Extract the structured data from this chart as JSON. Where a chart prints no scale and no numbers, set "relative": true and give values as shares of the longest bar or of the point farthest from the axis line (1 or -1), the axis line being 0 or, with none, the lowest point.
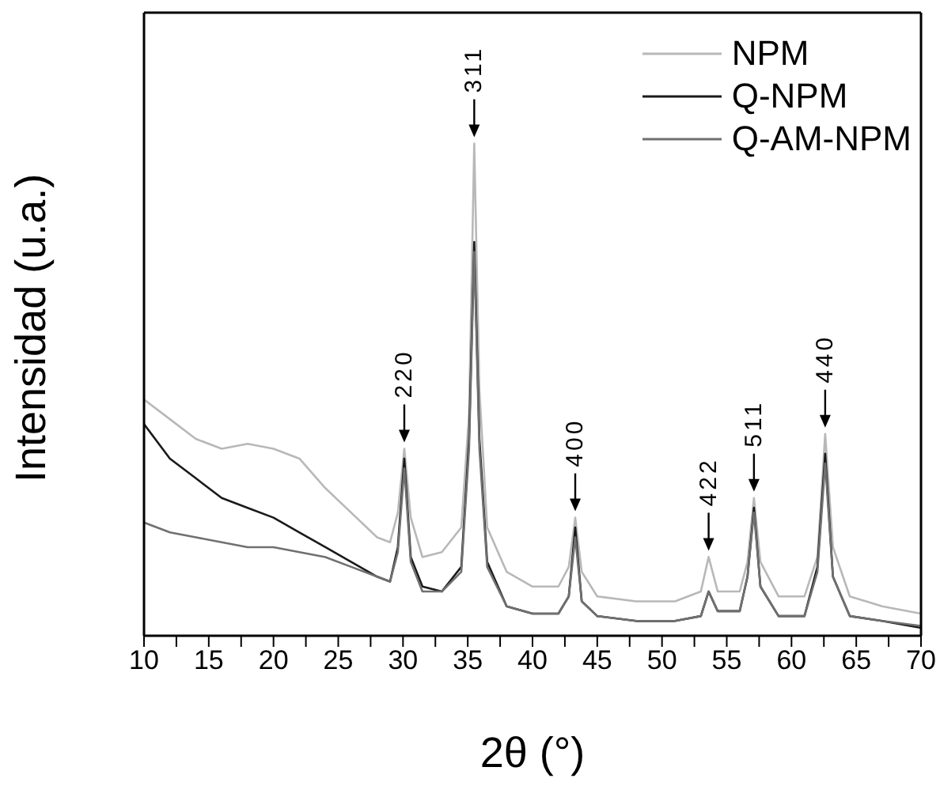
{
  "chart_data": {
    "type": "line",
    "relative": true,
    "xlabel": "2θ (°)",
    "ylabel": "Intensidad (u.a.)",
    "x": [
      10,
      12,
      14,
      16,
      18,
      20,
      22,
      24,
      26,
      28,
      29,
      29.6,
      30.1,
      30.6,
      31.5,
      33,
      34.5,
      35.1,
      35.5,
      35.9,
      36.5,
      38,
      40,
      42,
      42.8,
      43.3,
      43.8,
      45,
      48,
      51,
      53,
      53.6,
      54.3,
      56,
      56.6,
      57.1,
      57.6,
      59,
      61,
      62,
      62.6,
      63.2,
      64.5,
      67,
      70
    ],
    "series": [
      {
        "name": "NPM",
        "color": "#b8b8b8",
        "values": [
          0.48,
          0.44,
          0.4,
          0.38,
          0.39,
          0.38,
          0.36,
          0.3,
          0.25,
          0.2,
          0.19,
          0.25,
          0.38,
          0.24,
          0.16,
          0.17,
          0.22,
          0.45,
          1.0,
          0.5,
          0.22,
          0.13,
          0.1,
          0.1,
          0.14,
          0.24,
          0.13,
          0.08,
          0.07,
          0.07,
          0.09,
          0.16,
          0.09,
          0.09,
          0.15,
          0.28,
          0.15,
          0.08,
          0.08,
          0.16,
          0.41,
          0.18,
          0.08,
          0.06,
          0.045
        ]
      },
      {
        "name": "Q-NPM",
        "color": "#1a1a1a",
        "values": [
          0.43,
          0.36,
          0.32,
          0.28,
          0.26,
          0.24,
          0.21,
          0.18,
          0.15,
          0.12,
          0.11,
          0.18,
          0.36,
          0.16,
          0.1,
          0.09,
          0.14,
          0.4,
          0.8,
          0.4,
          0.15,
          0.06,
          0.045,
          0.045,
          0.08,
          0.22,
          0.07,
          0.04,
          0.03,
          0.03,
          0.04,
          0.09,
          0.05,
          0.05,
          0.12,
          0.26,
          0.1,
          0.04,
          0.04,
          0.14,
          0.37,
          0.12,
          0.04,
          0.03,
          0.016
        ]
      },
      {
        "name": "Q-AM-NPM",
        "color": "#707070",
        "values": [
          0.23,
          0.21,
          0.2,
          0.19,
          0.18,
          0.18,
          0.17,
          0.16,
          0.14,
          0.12,
          0.11,
          0.17,
          0.34,
          0.15,
          0.09,
          0.09,
          0.13,
          0.38,
          0.78,
          0.38,
          0.14,
          0.06,
          0.045,
          0.045,
          0.08,
          0.2,
          0.07,
          0.04,
          0.03,
          0.03,
          0.04,
          0.09,
          0.05,
          0.05,
          0.12,
          0.25,
          0.1,
          0.04,
          0.04,
          0.13,
          0.35,
          0.12,
          0.04,
          0.03,
          0.02
        ]
      }
    ],
    "xlim": [
      10,
      70
    ],
    "xticks": [
      10,
      {
        "value": 12.5,
        "label": null
      },
      15,
      {
        "value": 17.5,
        "label": null
      },
      20,
      {
        "value": 22.5,
        "label": null
      },
      25,
      {
        "value": 27.5,
        "label": null
      },
      30,
      {
        "value": 32.5,
        "label": null
      },
      35,
      {
        "value": 37.5,
        "label": null
      },
      40,
      {
        "value": 42.5,
        "label": null
      },
      45,
      {
        "value": 47.5,
        "label": null
      },
      50,
      {
        "value": 52.5,
        "label": null
      },
      55,
      {
        "value": 57.5,
        "label": null
      },
      60,
      {
        "value": 62.5,
        "label": null
      },
      65,
      {
        "value": 67.5,
        "label": null
      },
      70
    ],
    "annotations": [
      {
        "text": "220",
        "x": 30.1,
        "y": 0.38
      },
      {
        "text": "311",
        "x": 35.5,
        "y": 1.0
      },
      {
        "text": "400",
        "x": 43.3,
        "y": 0.24
      },
      {
        "text": "422",
        "x": 53.6,
        "y": 0.16
      },
      {
        "text": "511",
        "x": 57.1,
        "y": 0.28
      },
      {
        "text": "440",
        "x": 62.6,
        "y": 0.41
      }
    ],
    "tick_labels": "x",
    "grid": false,
    "legend": "top right",
    "marker": "none",
    "line_style": "solid"
  }
}
